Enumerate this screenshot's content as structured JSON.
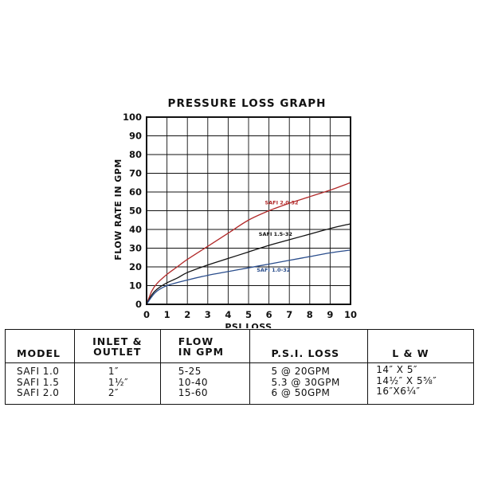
{
  "chart_data": {
    "type": "line",
    "title": "PRESSURE LOSS GRAPH",
    "xlabel": "PSI LOSS",
    "ylabel": "FLOW RATE IN GPM",
    "xlim": [
      0,
      10
    ],
    "ylim": [
      0,
      100
    ],
    "x_ticks": [
      "0",
      "1",
      "2",
      "3",
      "4",
      "5",
      "6",
      "7",
      "8",
      "9",
      "10"
    ],
    "y_ticks": [
      "0",
      "10",
      "20",
      "30",
      "40",
      "50",
      "60",
      "70",
      "80",
      "90",
      "100"
    ],
    "grid": true,
    "series": [
      {
        "name": "SAFI 2.0-32",
        "color": "#b22a2a",
        "label_at": [
          5.8,
          53.5
        ],
        "points": [
          [
            0,
            0
          ],
          [
            0.25,
            7
          ],
          [
            0.5,
            11
          ],
          [
            1,
            16
          ],
          [
            1.5,
            20
          ],
          [
            2,
            24
          ],
          [
            3,
            31
          ],
          [
            4,
            38
          ],
          [
            5,
            45
          ],
          [
            6,
            50
          ],
          [
            7,
            54
          ],
          [
            8,
            57.5
          ],
          [
            9,
            61
          ],
          [
            10,
            65
          ]
        ]
      },
      {
        "name": "SAFI 1.5-32",
        "color": "#111111",
        "label_at": [
          5.5,
          36.5
        ],
        "points": [
          [
            0,
            0
          ],
          [
            0.25,
            5
          ],
          [
            0.5,
            8
          ],
          [
            1,
            11.5
          ],
          [
            1.5,
            14
          ],
          [
            2,
            17
          ],
          [
            3,
            21
          ],
          [
            4,
            24.5
          ],
          [
            5,
            28
          ],
          [
            6,
            31.5
          ],
          [
            7,
            34.5
          ],
          [
            8,
            37.5
          ],
          [
            9,
            40.5
          ],
          [
            10,
            43
          ]
        ]
      },
      {
        "name": "SAFI 1.0-32",
        "color": "#2a4d8c",
        "label_at": [
          5.4,
          17.5
        ],
        "points": [
          [
            0,
            0
          ],
          [
            0.25,
            4
          ],
          [
            0.5,
            7
          ],
          [
            1,
            10
          ],
          [
            2,
            13
          ],
          [
            3,
            15.5
          ],
          [
            4,
            17.5
          ],
          [
            5,
            19.5
          ],
          [
            6,
            21.5
          ],
          [
            7,
            23.5
          ],
          [
            8,
            25.5
          ],
          [
            9,
            27.5
          ],
          [
            10,
            29
          ]
        ]
      }
    ]
  },
  "table": {
    "headers": [
      "MODEL",
      "INLET &\nOUTLET",
      "FLOW\nIN GPM",
      "P.S.I. LOSS",
      "L & W"
    ],
    "rows": [
      {
        "model": "SAFI 1.0",
        "inlet": "1″",
        "flow": "5-25",
        "loss": "5 @ 20GPM",
        "lw": "14″ X 5″"
      },
      {
        "model": "SAFI 1.5",
        "inlet": "1½″",
        "flow": "10-40",
        "loss": "5.3 @ 30GPM",
        "lw": "14½″ X 5⅝″"
      },
      {
        "model": "SAFI 2.0",
        "inlet": "2″",
        "flow": "15-60",
        "loss": "6 @ 50GPM",
        "lw": "16″X6¼″"
      }
    ]
  }
}
